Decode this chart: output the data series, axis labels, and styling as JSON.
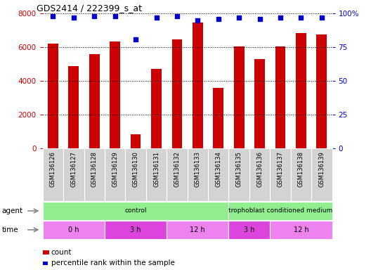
{
  "title": "GDS2414 / 222399_s_at",
  "samples": [
    "GSM136126",
    "GSM136127",
    "GSM136128",
    "GSM136129",
    "GSM136130",
    "GSM136131",
    "GSM136132",
    "GSM136133",
    "GSM136134",
    "GSM136135",
    "GSM136136",
    "GSM136137",
    "GSM136138",
    "GSM136139"
  ],
  "counts": [
    6200,
    4900,
    5600,
    6350,
    850,
    4700,
    6450,
    7450,
    3600,
    6050,
    5300,
    6050,
    6850,
    6750
  ],
  "percentile_ranks": [
    98,
    97,
    98,
    98,
    81,
    97,
    98,
    95,
    96,
    97,
    96,
    97,
    97,
    97
  ],
  "bar_color": "#cc0000",
  "dot_color": "#0000cc",
  "ylim_left": [
    0,
    8000
  ],
  "ylim_right": [
    0,
    100
  ],
  "yticks_left": [
    0,
    2000,
    4000,
    6000,
    8000
  ],
  "yticks_right": [
    0,
    25,
    50,
    75,
    100
  ],
  "ytick_labels_right": [
    "0",
    "25",
    "50",
    "75",
    "100%"
  ],
  "agent_groups": [
    {
      "label": "control",
      "start": 0,
      "end": 9
    },
    {
      "label": "trophoblast conditioned medium",
      "start": 9,
      "end": 14
    }
  ],
  "time_groups": [
    {
      "label": "0 h",
      "start": 0,
      "end": 3
    },
    {
      "label": "3 h",
      "start": 3,
      "end": 6
    },
    {
      "label": "12 h",
      "start": 6,
      "end": 9
    },
    {
      "label": "3 h",
      "start": 9,
      "end": 11
    },
    {
      "label": "12 h",
      "start": 11,
      "end": 14
    }
  ],
  "agent_label": "agent",
  "time_label": "time",
  "legend_count_label": "count",
  "legend_percentile_label": "percentile rank within the sample",
  "tick_label_color_left": "#cc0000",
  "tick_label_color_right": "#0000cc",
  "xticklabel_bg": "#d3d3d3",
  "agent_color": "#90ee90",
  "time_color_alt1": "#ee82ee",
  "time_color_alt2": "#dd44dd",
  "bar_width": 0.5
}
